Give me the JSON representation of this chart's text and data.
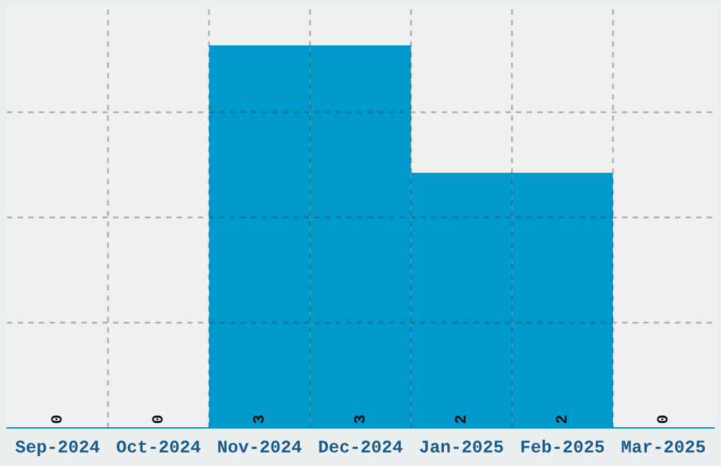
{
  "chart_data": {
    "type": "bar",
    "categories": [
      "Sep-2024",
      "Oct-2024",
      "Nov-2024",
      "Dec-2024",
      "Jan-2025",
      "Feb-2025",
      "Mar-2025"
    ],
    "values": [
      0,
      0,
      3,
      3,
      2,
      2,
      0
    ],
    "color": "#0099cc",
    "ylim": [
      0,
      3.3
    ],
    "yticks": [
      {
        "value": 0.825,
        "label": null
      },
      {
        "value": 1.65,
        "label": null
      },
      {
        "value": 2.475,
        "label": null
      }
    ],
    "tick_labels": "x",
    "grid": true,
    "data_labels": true
  }
}
